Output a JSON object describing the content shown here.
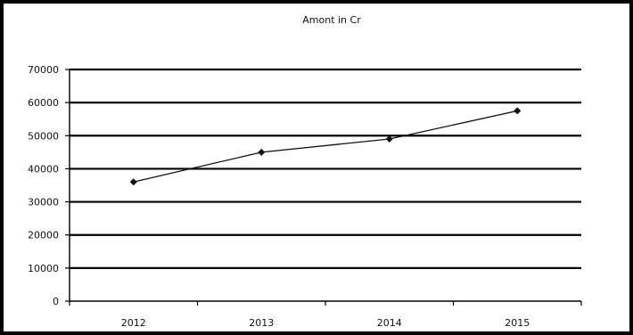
{
  "chart_data": {
    "type": "line",
    "title": "Amont in Cr",
    "xlabel": "",
    "ylabel": "",
    "categories": [
      "2012",
      "2013",
      "2014",
      "2015"
    ],
    "series": [
      {
        "values": [
          36000,
          45000,
          49000,
          57500
        ],
        "color": "#111111",
        "marker": "diamond"
      }
    ],
    "ylim": [
      0,
      70000
    ],
    "yticks": [
      0,
      10000,
      20000,
      30000,
      40000,
      50000,
      60000,
      70000
    ],
    "ytick_labels": [
      "0",
      "10000",
      "20000",
      "30000",
      "40000",
      "50000",
      "60000",
      "70000"
    ],
    "grid": true,
    "legend": "none"
  }
}
